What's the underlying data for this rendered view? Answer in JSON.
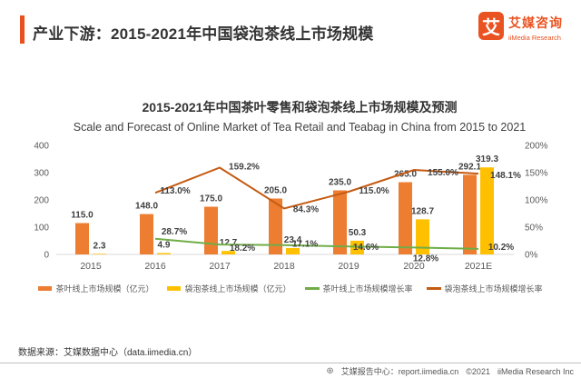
{
  "header": {
    "title": "产业下游：2015-2021年中国袋泡茶线上市场规模",
    "logo": {
      "mark": "艾",
      "name_cn": "艾媒咨询",
      "name_en": "iiMedia Research"
    }
  },
  "chart_data": {
    "type": "bar",
    "subtype": "combo-bar-line",
    "title": "2015-2021年中国茶叶零售和袋泡茶线上市场规模及预测",
    "subtitle": "Scale and Forecast of Online Market of Tea Retail and Teabag in China from 2015 to 2021",
    "categories": [
      "2015",
      "2016",
      "2017",
      "2018",
      "2019",
      "2020",
      "2021E"
    ],
    "left_axis": {
      "ticks": [
        0,
        100,
        200,
        300,
        400
      ],
      "min": 0,
      "max": 400,
      "grid": false
    },
    "right_axis": {
      "ticks": [
        "0%",
        "50%",
        "100%",
        "150%",
        "200%"
      ],
      "min": 0,
      "max": 200
    },
    "legend_position": "bottom",
    "series": [
      {
        "name": "茶叶线上市场规模（亿元）",
        "type": "bar",
        "axis": "left",
        "color": "#ED7D31",
        "values": [
          115.0,
          148.0,
          175.0,
          205.0,
          235.0,
          265.0,
          292.1
        ],
        "labels": [
          "115.0",
          "148.0",
          "175.0",
          "205.0",
          "235.0",
          "265.0",
          "292.1"
        ]
      },
      {
        "name": "袋泡茶线上市场规模（亿元）",
        "type": "bar",
        "axis": "left",
        "color": "#FFC000",
        "values": [
          2.3,
          4.9,
          12.7,
          23.4,
          50.3,
          128.7,
          319.3
        ],
        "labels": [
          "2.3",
          "4.9",
          "12.7",
          "23.4",
          "50.3",
          "128.7",
          "319.3"
        ]
      },
      {
        "name": "茶叶线上市场规模增长率",
        "type": "line",
        "axis": "right",
        "color": "#70AD47",
        "values": [
          null,
          28.7,
          18.2,
          17.1,
          14.6,
          12.8,
          10.2
        ],
        "labels": [
          null,
          "28.7%",
          "18.2%",
          "17.1%",
          "14.6%",
          "12.8%",
          "10.2%"
        ]
      },
      {
        "name": "袋泡茶线上市场规模增长率",
        "type": "line",
        "axis": "right",
        "color": "#C55A11",
        "values": [
          null,
          113.0,
          159.2,
          84.3,
          115.0,
          155.0,
          148.1
        ],
        "labels": [
          null,
          "113.0%",
          "159.2%",
          "84.3%",
          "115.0%",
          "155.0%",
          "148.1%"
        ]
      }
    ]
  },
  "footer": {
    "source": "数据来源：艾媒数据中心（data.iimedia.cn）"
  },
  "bottombar": {
    "site": "艾媒报告中心：report.iimedia.cn",
    "copyright": "©2021",
    "company": "iiMedia Research Inc"
  }
}
